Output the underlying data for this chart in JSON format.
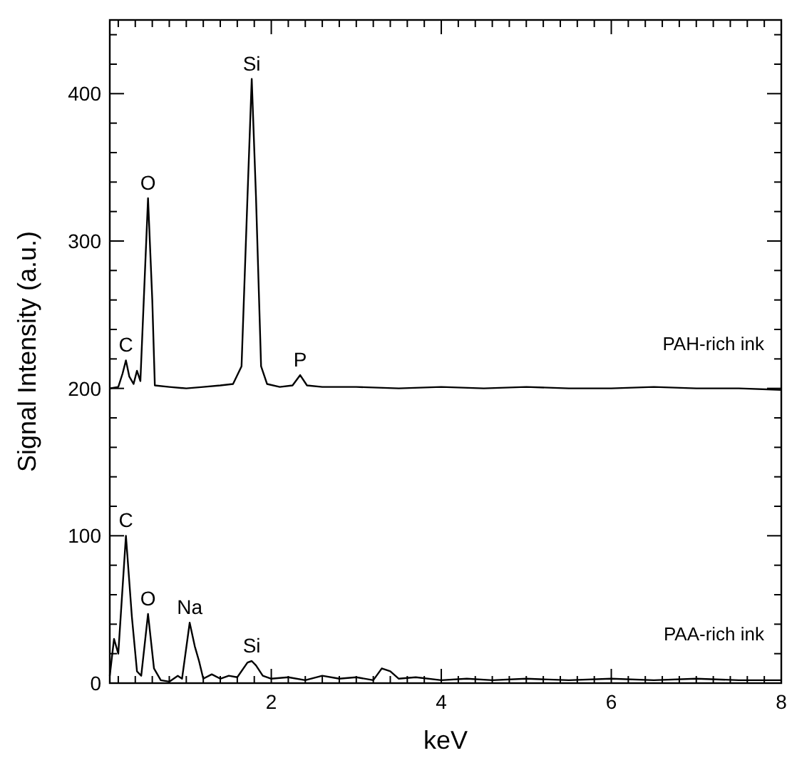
{
  "chart_data": {
    "type": "line",
    "xlabel": "keV",
    "ylabel": "Signal Intensity (a.u.)",
    "xlim": [
      0.1,
      8
    ],
    "ylim": [
      0,
      450
    ],
    "xticks": [
      {
        "value": 0.2,
        "label": null
      },
      {
        "value": 0.4,
        "label": null
      },
      {
        "value": 0.6,
        "label": null
      },
      {
        "value": 0.8,
        "label": null
      },
      {
        "value": 1,
        "label": null
      },
      {
        "value": 1.2,
        "label": null
      },
      {
        "value": 1.4,
        "label": null
      },
      {
        "value": 1.6,
        "label": null
      },
      {
        "value": 1.8,
        "label": null
      },
      2,
      {
        "value": 2.2,
        "label": null
      },
      {
        "value": 2.4,
        "label": null
      },
      {
        "value": 2.6,
        "label": null
      },
      {
        "value": 2.8,
        "label": null
      },
      {
        "value": 3,
        "label": null
      },
      {
        "value": 3.2,
        "label": null
      },
      {
        "value": 3.4,
        "label": null
      },
      {
        "value": 3.6,
        "label": null
      },
      {
        "value": 3.8,
        "label": null
      },
      4,
      {
        "value": 4.2,
        "label": null
      },
      {
        "value": 4.4,
        "label": null
      },
      {
        "value": 4.6,
        "label": null
      },
      {
        "value": 4.8,
        "label": null
      },
      {
        "value": 5,
        "label": null
      },
      {
        "value": 5.2,
        "label": null
      },
      {
        "value": 5.4,
        "label": null
      },
      {
        "value": 5.6,
        "label": null
      },
      {
        "value": 5.8,
        "label": null
      },
      6,
      {
        "value": 6.2,
        "label": null
      },
      {
        "value": 6.4,
        "label": null
      },
      {
        "value": 6.6,
        "label": null
      },
      {
        "value": 6.8,
        "label": null
      },
      {
        "value": 7,
        "label": null
      },
      {
        "value": 7.2,
        "label": null
      },
      {
        "value": 7.4,
        "label": null
      },
      {
        "value": 7.6,
        "label": null
      },
      {
        "value": 7.8,
        "label": null
      },
      8
    ],
    "yticks": [
      0,
      {
        "value": 20,
        "label": null
      },
      {
        "value": 40,
        "label": null
      },
      {
        "value": 60,
        "label": null
      },
      {
        "value": 80,
        "label": null
      },
      100,
      {
        "value": 120,
        "label": null
      },
      {
        "value": 140,
        "label": null
      },
      {
        "value": 160,
        "label": null
      },
      {
        "value": 180,
        "label": null
      },
      200,
      {
        "value": 220,
        "label": null
      },
      {
        "value": 240,
        "label": null
      },
      {
        "value": 260,
        "label": null
      },
      {
        "value": 280,
        "label": null
      },
      300,
      {
        "value": 320,
        "label": null
      },
      {
        "value": 340,
        "label": null
      },
      {
        "value": 360,
        "label": null
      },
      {
        "value": 380,
        "label": null
      },
      400,
      {
        "value": 420,
        "label": null
      },
      {
        "value": 440,
        "label": null
      }
    ],
    "grid": false,
    "legend": "right",
    "marker": "none",
    "line_style": "solid",
    "series": [
      {
        "name": "PAH-rich ink",
        "color": "#000000",
        "x": [
          0.1,
          0.2,
          0.25,
          0.29,
          0.33,
          0.38,
          0.42,
          0.46,
          0.5,
          0.55,
          0.6,
          0.63,
          0.8,
          1.0,
          1.2,
          1.4,
          1.55,
          1.65,
          1.72,
          1.77,
          1.82,
          1.88,
          1.95,
          2.1,
          2.25,
          2.34,
          2.42,
          2.6,
          3.0,
          3.5,
          4,
          4.5,
          5,
          5.5,
          6,
          6.5,
          7,
          7.5,
          8
        ],
        "values": [
          200,
          201,
          210,
          219,
          208,
          203,
          212,
          205,
          260,
          329,
          260,
          202,
          201,
          200,
          201,
          202,
          203,
          215,
          330,
          410,
          330,
          215,
          203,
          201,
          202,
          209,
          202,
          201,
          201,
          200,
          201,
          200,
          201,
          200,
          200,
          201,
          200,
          200,
          199
        ]
      },
      {
        "name": "PAA-rich ink",
        "color": "#000000",
        "x": [
          0.1,
          0.15,
          0.2,
          0.29,
          0.36,
          0.42,
          0.47,
          0.55,
          0.62,
          0.7,
          0.8,
          0.9,
          0.95,
          1.04,
          1.1,
          1.15,
          1.2,
          1.3,
          1.4,
          1.5,
          1.6,
          1.72,
          1.77,
          1.82,
          1.9,
          2.0,
          2.2,
          2.4,
          2.6,
          2.8,
          3.0,
          3.2,
          3.3,
          3.4,
          3.5,
          3.7,
          4.0,
          4.3,
          4.6,
          5,
          5.5,
          6,
          6.5,
          7,
          7.5,
          8
        ],
        "values": [
          5,
          30,
          20,
          100,
          45,
          8,
          5,
          47,
          10,
          2,
          1,
          5,
          3,
          41,
          25,
          15,
          3,
          6,
          3,
          5,
          4,
          14,
          15,
          12,
          5,
          3,
          4,
          2,
          5,
          3,
          4,
          2,
          10,
          8,
          3,
          4,
          2,
          3,
          2,
          3,
          2,
          3,
          2,
          3,
          2,
          2
        ]
      }
    ],
    "annotations": [
      {
        "text": "C",
        "x": 0.29,
        "y": 219
      },
      {
        "text": "O",
        "x": 0.55,
        "y": 329
      },
      {
        "text": "Si",
        "x": 1.77,
        "y": 410
      },
      {
        "text": "P",
        "x": 2.34,
        "y": 209
      },
      {
        "text": "C",
        "x": 0.29,
        "y": 100
      },
      {
        "text": "O",
        "x": 0.55,
        "y": 47
      },
      {
        "text": "Na",
        "x": 1.04,
        "y": 41
      },
      {
        "text": "Si",
        "x": 1.77,
        "y": 15
      }
    ]
  }
}
